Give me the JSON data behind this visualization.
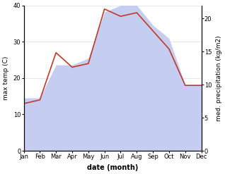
{
  "months": [
    "Jan",
    "Feb",
    "Mar",
    "Apr",
    "May",
    "Jun",
    "Jul",
    "Aug",
    "Sep",
    "Oct",
    "Nov",
    "Dec"
  ],
  "temperature": [
    13,
    14,
    27,
    23,
    24,
    39,
    37,
    38,
    33,
    28,
    18,
    18
  ],
  "precipitation": [
    8,
    8,
    13,
    13,
    14,
    21,
    22,
    22,
    19,
    17,
    10,
    10
  ],
  "temp_color": "#c0392b",
  "precip_color": "#c5cdf0",
  "left_ylabel": "max temp (C)",
  "right_ylabel": "med. precipitation (kg/m2)",
  "xlabel": "date (month)",
  "left_ylim": [
    0,
    40
  ],
  "right_ylim": [
    0,
    22
  ],
  "left_yticks": [
    0,
    10,
    20,
    30,
    40
  ],
  "right_yticks": [
    0,
    5,
    10,
    15,
    20
  ],
  "background_color": "#ffffff"
}
